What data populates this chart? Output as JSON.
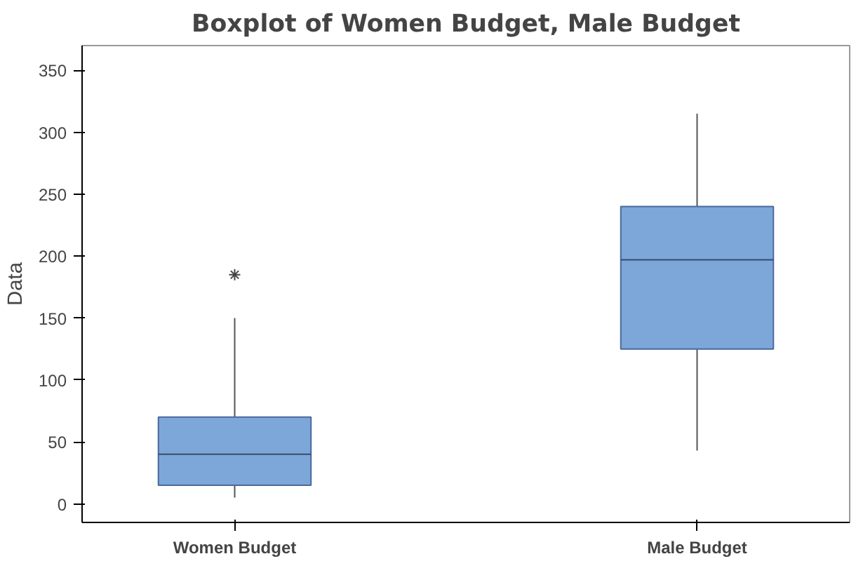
{
  "chart_data": {
    "type": "box",
    "title": "Boxplot of Women Budget, Male Budget",
    "ylabel": "Data",
    "categories": [
      "Women Budget",
      "Male Budget"
    ],
    "color": "#7da7d9",
    "boxes": [
      {
        "low": 5,
        "q1": 15,
        "median": 40,
        "q3": 70,
        "high": 150,
        "outliers": [
          185
        ]
      },
      {
        "low": 43,
        "q1": 125,
        "median": 197,
        "q3": 240,
        "high": 315
      }
    ],
    "ylim": [
      -15,
      370
    ],
    "yticks": [
      0,
      50,
      100,
      150,
      200,
      250,
      300,
      350
    ],
    "grid": false
  }
}
